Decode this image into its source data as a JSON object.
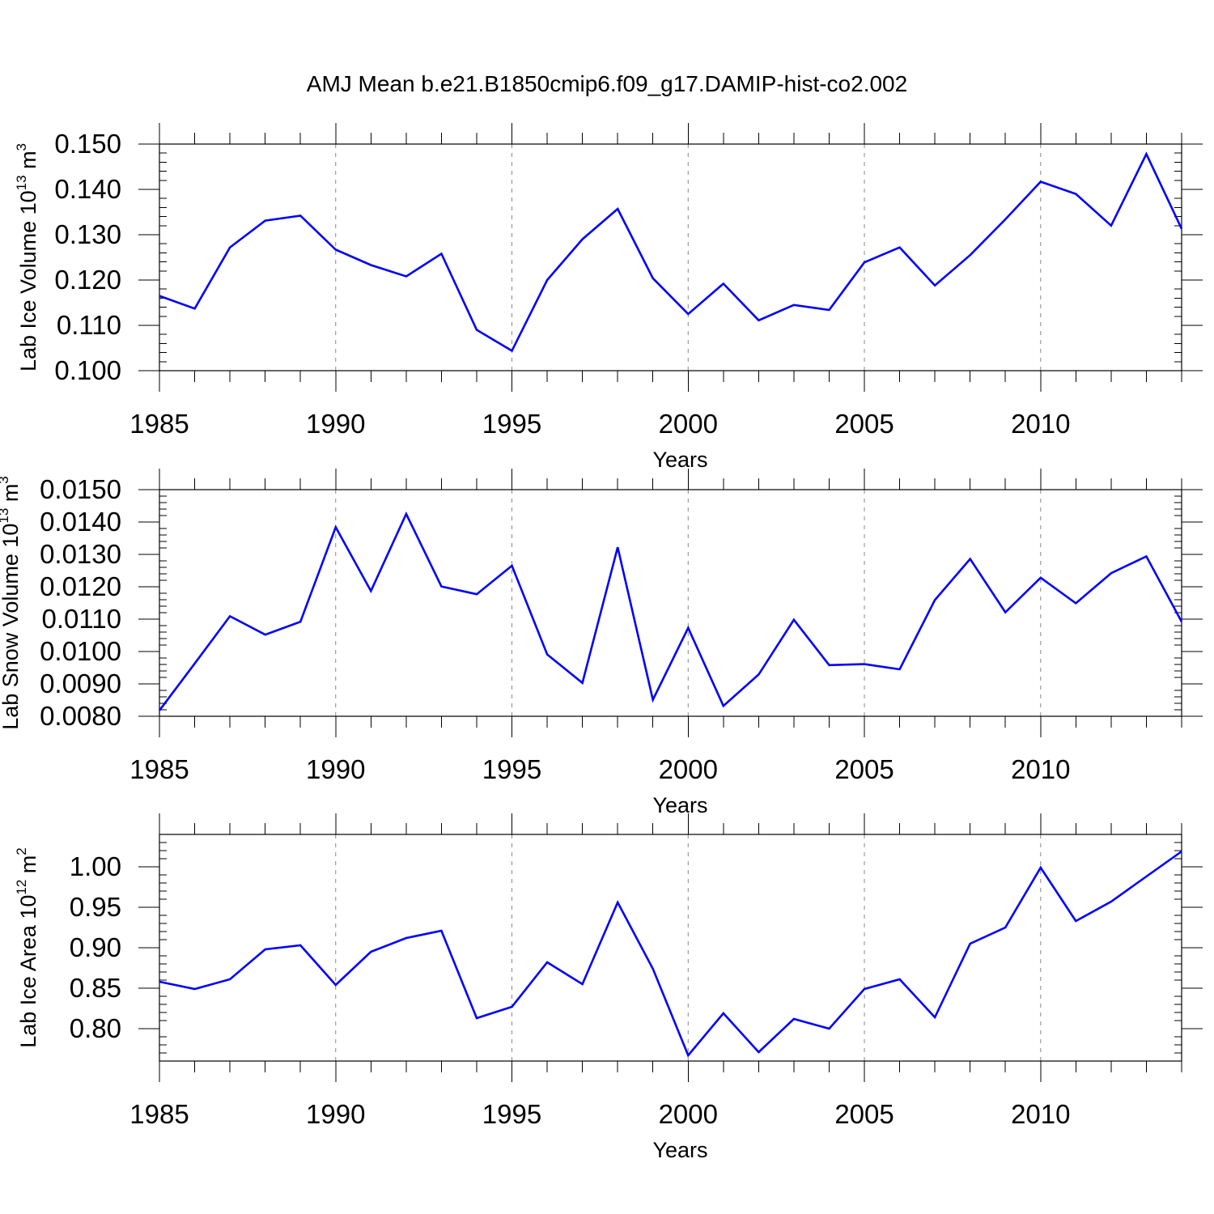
{
  "title": "AMJ Mean b.e21.B1850cmip6.f09_g17.DAMIP-hist-co2.002",
  "colors": {
    "line": "#0000ff",
    "axis": "#000000",
    "grid": "#888888",
    "background": "#ffffff"
  },
  "chart_data": [
    {
      "type": "line",
      "name": "lab-ice-volume",
      "ylabel": "Lab Ice Volume 10",
      "ylabel_sup": "13",
      "ylabel_unit": "m",
      "ylabel_unit_sup": "3",
      "xlabel": "Years",
      "xlim": [
        1985,
        2014
      ],
      "ylim": [
        0.1,
        0.15
      ],
      "yticks": [
        0.1,
        0.11,
        0.12,
        0.13,
        0.14,
        0.15
      ],
      "ytick_labels": [
        "0.100",
        "0.110",
        "0.120",
        "0.130",
        "0.140",
        "0.150"
      ],
      "xticks": [
        1985,
        1990,
        1995,
        2000,
        2005,
        2010
      ],
      "xtick_labels": [
        "1985",
        "1990",
        "1995",
        "2000",
        "2005",
        "2010"
      ],
      "grid_x": [
        1990,
        1995,
        2000,
        2005,
        2010
      ],
      "x": [
        1985,
        1986,
        1987,
        1988,
        1989,
        1990,
        1991,
        1992,
        1993,
        1994,
        1995,
        1996,
        1997,
        1998,
        1999,
        2000,
        2001,
        2002,
        2003,
        2004,
        2005,
        2006,
        2007,
        2008,
        2009,
        2010,
        2011,
        2012,
        2013,
        2014
      ],
      "values": [
        0.1165,
        0.1137,
        0.1272,
        0.1331,
        0.1342,
        0.1267,
        0.1233,
        0.1208,
        0.1258,
        0.109,
        0.1044,
        0.12,
        0.129,
        0.1357,
        0.1204,
        0.1125,
        0.1192,
        0.1111,
        0.1145,
        0.1134,
        0.1239,
        0.1272,
        0.1188,
        0.1255,
        0.1334,
        0.1417,
        0.139,
        0.132,
        0.1478,
        0.1313
      ]
    },
    {
      "type": "line",
      "name": "lab-snow-volume",
      "ylabel": "Lab Snow Volume 10",
      "ylabel_sup": "13",
      "ylabel_unit": "m",
      "ylabel_unit_sup": "3",
      "xlabel": "Years",
      "xlim": [
        1985,
        2014
      ],
      "ylim": [
        0.008,
        0.015
      ],
      "yticks": [
        0.008,
        0.009,
        0.01,
        0.011,
        0.012,
        0.013,
        0.014,
        0.015
      ],
      "ytick_labels": [
        "0.0080",
        "0.0090",
        "0.0100",
        "0.0110",
        "0.0120",
        "0.0130",
        "0.0140",
        "0.0150"
      ],
      "xticks": [
        1985,
        1990,
        1995,
        2000,
        2005,
        2010
      ],
      "xtick_labels": [
        "1985",
        "1990",
        "1995",
        "2000",
        "2005",
        "2010"
      ],
      "grid_x": [
        1990,
        1995,
        2000,
        2005,
        2010
      ],
      "x": [
        1985,
        1986,
        1987,
        1988,
        1989,
        1990,
        1991,
        1992,
        1993,
        1994,
        1995,
        1996,
        1997,
        1998,
        1999,
        2000,
        2001,
        2002,
        2003,
        2004,
        2005,
        2006,
        2007,
        2008,
        2009,
        2010,
        2011,
        2012,
        2013,
        2014
      ],
      "values": [
        0.00818,
        0.00963,
        0.01109,
        0.01052,
        0.01092,
        0.01384,
        0.01187,
        0.01425,
        0.01201,
        0.01177,
        0.01265,
        0.00991,
        0.00903,
        0.01322,
        0.00851,
        0.01073,
        0.00832,
        0.00929,
        0.01098,
        0.00958,
        0.00961,
        0.00945,
        0.01159,
        0.01286,
        0.01121,
        0.01228,
        0.01149,
        0.01242,
        0.01294,
        0.01092
      ]
    },
    {
      "type": "line",
      "name": "lab-ice-area",
      "ylabel": "Lab Ice Area 10",
      "ylabel_sup": "12",
      "ylabel_unit": "m",
      "ylabel_unit_sup": "2",
      "xlabel": "Years",
      "xlim": [
        1985,
        2014
      ],
      "ylim": [
        0.76,
        1.04
      ],
      "yticks": [
        0.8,
        0.85,
        0.9,
        0.95,
        1.0
      ],
      "ytick_labels": [
        "0.80",
        "0.85",
        "0.90",
        "0.95",
        "1.00"
      ],
      "xticks": [
        1985,
        1990,
        1995,
        2000,
        2005,
        2010
      ],
      "xtick_labels": [
        "1985",
        "1990",
        "1995",
        "2000",
        "2005",
        "2010"
      ],
      "grid_x": [
        1990,
        1995,
        2000,
        2005,
        2010
      ],
      "x": [
        1985,
        1986,
        1987,
        1988,
        1989,
        1990,
        1991,
        1992,
        1993,
        1994,
        1995,
        1996,
        1997,
        1998,
        1999,
        2000,
        2001,
        2002,
        2003,
        2004,
        2005,
        2006,
        2007,
        2008,
        2009,
        2010,
        2011,
        2012,
        2013,
        2014
      ],
      "values": [
        0.858,
        0.849,
        0.861,
        0.898,
        0.903,
        0.854,
        0.895,
        0.912,
        0.921,
        0.813,
        0.827,
        0.882,
        0.855,
        0.956,
        0.874,
        0.767,
        0.819,
        0.771,
        0.812,
        0.8,
        0.849,
        0.861,
        0.814,
        0.905,
        0.925,
        0.999,
        0.933,
        0.957,
        0.988,
        1.019
      ]
    }
  ]
}
